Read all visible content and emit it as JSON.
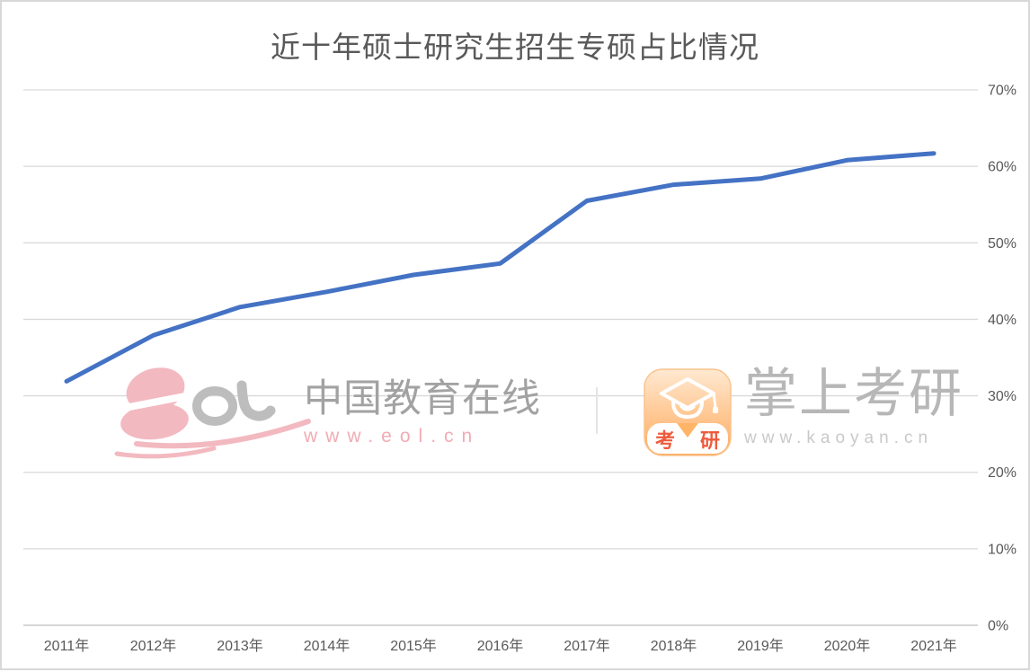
{
  "chart_data": {
    "type": "line",
    "title": "近十年硕士研究生招生专硕占比情况",
    "categories": [
      "2011年",
      "2012年",
      "2013年",
      "2014年",
      "2015年",
      "2016年",
      "2017年",
      "2018年",
      "2019年",
      "2020年",
      "2021年"
    ],
    "series": [
      {
        "name": "专硕占比",
        "values": [
          31.9,
          37.9,
          41.6,
          43.6,
          45.8,
          47.3,
          55.5,
          57.6,
          58.4,
          60.8,
          61.7
        ]
      }
    ],
    "xlabel": "",
    "ylabel": "",
    "ylim": [
      0,
      70
    ],
    "y_ticks": [
      "0%",
      "10%",
      "20%",
      "30%",
      "40%",
      "50%",
      "60%",
      "70%"
    ],
    "grid": true,
    "legend_position": "none",
    "line_color": "#4472C4",
    "gridline_color": "#d9d9d9",
    "axis_line_color": "#bfbfbf",
    "label_color": "#595959"
  },
  "watermarks": {
    "eol": {
      "name": "中国教育在线",
      "url": "www.eol.cn",
      "pink": "#f3b9c0",
      "gray": "#bdbdbd"
    },
    "kaoyan": {
      "name": "掌上考研",
      "url": "www.kaoyan.cn",
      "badge_left": "考",
      "badge_right": "研",
      "orange": "#ffaa5c",
      "red": "#ee5b3b"
    }
  }
}
